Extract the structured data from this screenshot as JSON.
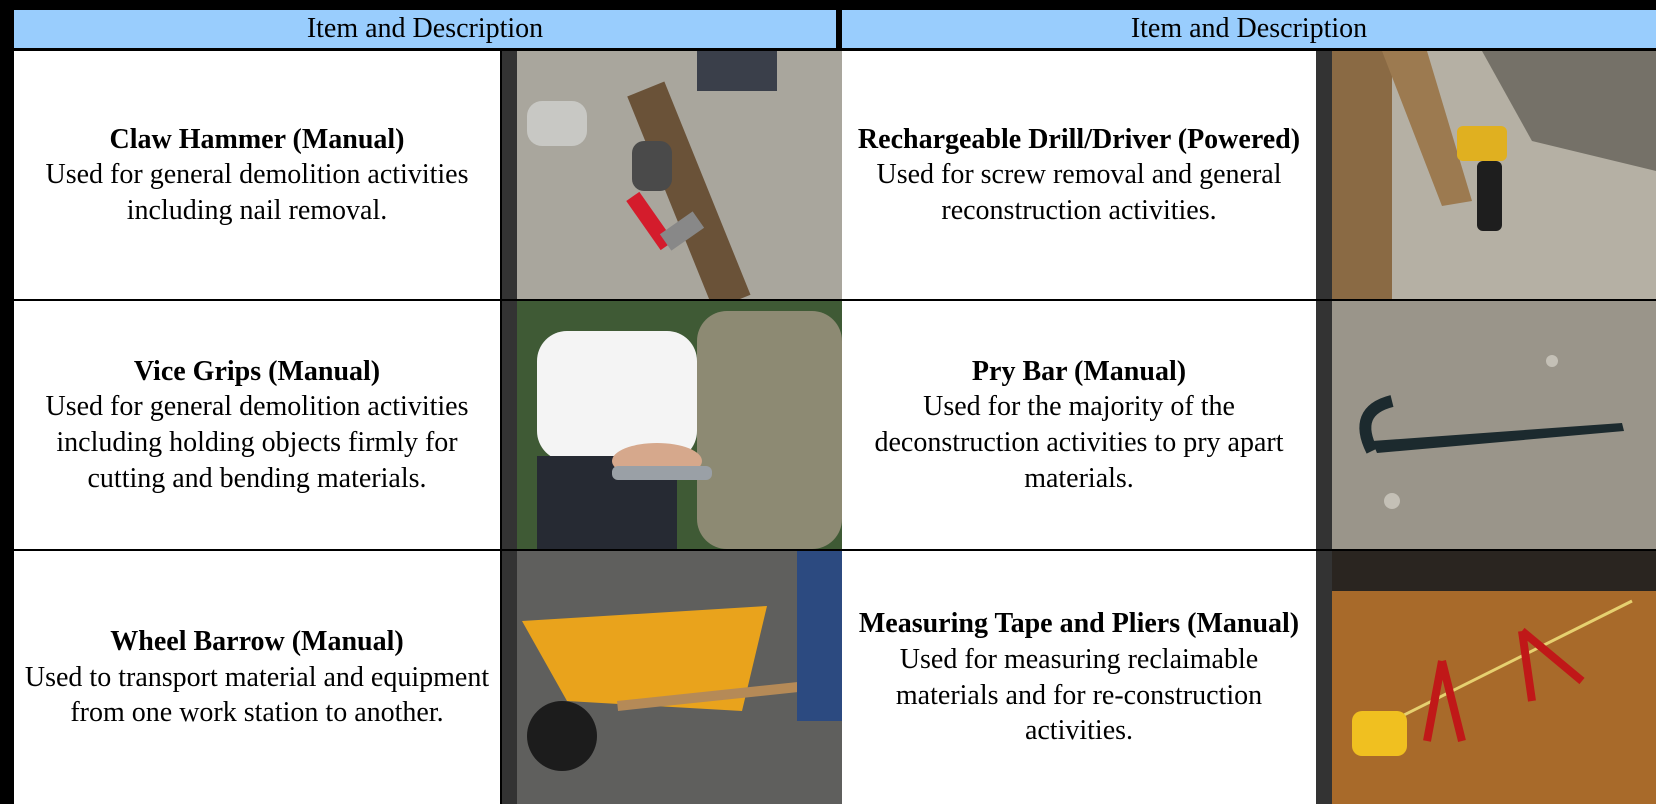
{
  "table": {
    "header": [
      "Item and Description",
      "Item and Description"
    ],
    "rows": [
      [
        {
          "title": "Claw Hammer (Manual)",
          "description": "Used for general demolition activities including nail removal."
        },
        {
          "title": "Rechargeable Drill/Driver (Powered)",
          "description": "Used for screw removal and general reconstruction activities."
        }
      ],
      [
        {
          "title": "Vice Grips (Manual)",
          "description": "Used for general demolition activities including holding objects firmly for cutting and bending materials."
        },
        {
          "title": "Pry Bar (Manual)",
          "description": "Used for the majority of the deconstruction activities to pry apart materials."
        }
      ],
      [
        {
          "title": "Wheel Barrow (Manual)",
          "description": "Used to transport material and equipment from one work station to another."
        },
        {
          "title": "Measuring Tape and Pliers (Manual)",
          "description": "Used for measuring reclaimable materials and for re-construction activities."
        }
      ]
    ]
  }
}
